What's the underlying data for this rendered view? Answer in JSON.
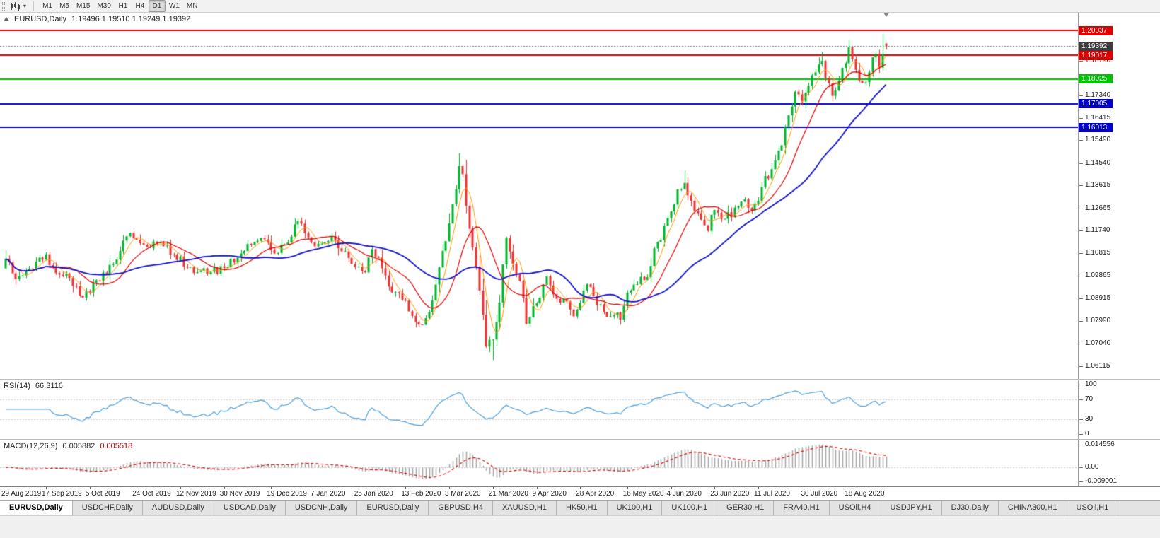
{
  "toolbar": {
    "timeframes": [
      "M1",
      "M5",
      "M15",
      "M30",
      "H1",
      "H4",
      "D1",
      "W1",
      "MN"
    ],
    "active_timeframe": "D1"
  },
  "chart": {
    "window_title": "EURUSD,Daily",
    "ohlc_text": "1.19496 1.19510 1.19249 1.19392"
  },
  "chart_data": {
    "type": "candlestick",
    "symbol": "EURUSD",
    "period": "Daily",
    "open": "1.19496",
    "high": "1.19510",
    "low": "1.19249",
    "close": "1.19392",
    "current_price": "1.19392",
    "price_range": {
      "top": 1.2078,
      "bottom": 1.0558
    },
    "price_ticks": [
      "1.18790",
      "1.17340",
      "1.16415",
      "1.15490",
      "1.14540",
      "1.13615",
      "1.12665",
      "1.11740",
      "1.10815",
      "1.09865",
      "1.08915",
      "1.07990",
      "1.07040",
      "1.06115"
    ],
    "horizontal_lines": [
      {
        "price": 1.20037,
        "label": "1.20037",
        "color": "#e00000"
      },
      {
        "price": 1.19017,
        "label": "1.19017",
        "color": "#e00000"
      },
      {
        "price": 1.18025,
        "label": "1.18025",
        "color": "#00c400"
      },
      {
        "price": 1.17005,
        "label": "1.17005",
        "color": "#0000d0"
      },
      {
        "price": 1.16013,
        "label": "1.16013",
        "color": "#0000d0"
      }
    ],
    "candle_count": 263,
    "close_waypoints": [
      [
        0,
        1.1057
      ],
      [
        3,
        1.0972
      ],
      [
        6,
        1.1
      ],
      [
        10,
        1.1065
      ],
      [
        12,
        1.1072
      ],
      [
        15,
        1.1
      ],
      [
        18,
        1.099
      ],
      [
        21,
        1.0945
      ],
      [
        23,
        1.0895
      ],
      [
        26,
        1.096
      ],
      [
        28,
        1.097
      ],
      [
        32,
        1.1035
      ],
      [
        36,
        1.115
      ],
      [
        38,
        1.114
      ],
      [
        42,
        1.111
      ],
      [
        46,
        1.1127
      ],
      [
        50,
        1.107
      ],
      [
        54,
        1.102
      ],
      [
        58,
        1.101
      ],
      [
        61,
        1.1005
      ],
      [
        65,
        1.1017
      ],
      [
        70,
        1.108
      ],
      [
        74,
        1.113
      ],
      [
        76,
        1.1145
      ],
      [
        80,
        1.1075
      ],
      [
        84,
        1.112
      ],
      [
        87,
        1.1212
      ],
      [
        89,
        1.116
      ],
      [
        92,
        1.1103
      ],
      [
        95,
        1.1125
      ],
      [
        98,
        1.1136
      ],
      [
        101,
        1.109
      ],
      [
        104,
        1.1023
      ],
      [
        107,
        1.1
      ],
      [
        109,
        1.1093
      ],
      [
        111,
        1.106
      ],
      [
        114,
        1.0945
      ],
      [
        117,
        1.0915
      ],
      [
        120,
        1.084
      ],
      [
        123,
        1.0786
      ],
      [
        125,
        1.0805
      ],
      [
        127,
        1.0885
      ],
      [
        129,
        1.1026
      ],
      [
        131,
        1.113
      ],
      [
        133,
        1.128
      ],
      [
        135,
        1.1446
      ],
      [
        136,
        1.141
      ],
      [
        137,
        1.128
      ],
      [
        138,
        1.1184
      ],
      [
        139,
        1.1105
      ],
      [
        141,
        1.092
      ],
      [
        143,
        1.0691
      ],
      [
        145,
        1.0722
      ],
      [
        146,
        1.079
      ],
      [
        147,
        1.088
      ],
      [
        148,
        1.103
      ],
      [
        149,
        1.114
      ],
      [
        151,
        1.1031
      ],
      [
        153,
        1.096
      ],
      [
        155,
        1.0791
      ],
      [
        157,
        1.086
      ],
      [
        159,
        1.09
      ],
      [
        161,
        1.098
      ],
      [
        163,
        1.091
      ],
      [
        165,
        1.087
      ],
      [
        167,
        1.088
      ],
      [
        169,
        1.0823
      ],
      [
        171,
        1.087
      ],
      [
        173,
        1.0955
      ],
      [
        175,
        1.09
      ],
      [
        178,
        1.0834
      ],
      [
        181,
        1.082
      ],
      [
        183,
        1.0805
      ],
      [
        185,
        1.0915
      ],
      [
        188,
        1.095
      ],
      [
        191,
        1.0983
      ],
      [
        193,
        1.11
      ],
      [
        195,
        1.1134
      ],
      [
        198,
        1.125
      ],
      [
        200,
        1.134
      ],
      [
        202,
        1.1375
      ],
      [
        204,
        1.13
      ],
      [
        206,
        1.125
      ],
      [
        209,
        1.1177
      ],
      [
        211,
        1.126
      ],
      [
        214,
        1.1219
      ],
      [
        216,
        1.1234
      ],
      [
        218,
        1.127
      ],
      [
        220,
        1.1308
      ],
      [
        222,
        1.126
      ],
      [
        224,
        1.13
      ],
      [
        226,
        1.1398
      ],
      [
        228,
        1.143
      ],
      [
        231,
        1.1525
      ],
      [
        233,
        1.165
      ],
      [
        235,
        1.1752
      ],
      [
        237,
        1.171
      ],
      [
        239,
        1.1778
      ],
      [
        241,
        1.183
      ],
      [
        243,
        1.1876
      ],
      [
        245,
        1.179
      ],
      [
        246,
        1.173
      ],
      [
        249,
        1.185
      ],
      [
        251,
        1.1933
      ],
      [
        253,
        1.184
      ],
      [
        254,
        1.1797
      ],
      [
        256,
        1.179
      ],
      [
        257,
        1.1831
      ],
      [
        259,
        1.1903
      ],
      [
        260,
        1.185
      ],
      [
        261,
        1.1911
      ],
      [
        262,
        1.19392
      ]
    ],
    "wick_overrides": {
      "135": {
        "high": 1.1495
      },
      "145": {
        "low": 1.0636
      },
      "202": {
        "high": 1.1422
      },
      "243": {
        "high": 1.1916
      },
      "251": {
        "high": 1.1966
      },
      "261": {
        "high": 1.199
      },
      "262": {
        "open": 1.19496,
        "high": 1.1951,
        "low": 1.19249,
        "close": 1.19392
      }
    },
    "moving_averages": [
      {
        "period": 5,
        "color": "#ff9900",
        "width": 1
      },
      {
        "period": 13,
        "color": "#e00000",
        "width": 1.2
      },
      {
        "period": 34,
        "color": "#1111cc",
        "width": 1.8
      }
    ],
    "date_labels": [
      "29 Aug 2019",
      "17 Sep 2019",
      "5 Oct 2019",
      "24 Oct 2019",
      "12 Nov 2019",
      "30 Nov 2019",
      "19 Dec 2019",
      "7 Jan 2020",
      "25 Jan 2020",
      "13 Feb 2020",
      "3 Mar 2020",
      "21 Mar 2020",
      "9 Apr 2020",
      "28 Apr 2020",
      "16 May 2020",
      "4 Jun 2020",
      "23 Jun 2020",
      "11 Jul 2020",
      "30 Jul 2020",
      "18 Aug 2020"
    ],
    "date_label_indices": [
      0,
      12,
      25,
      39,
      52,
      65,
      79,
      92,
      105,
      119,
      132,
      145,
      158,
      171,
      185,
      198,
      211,
      224,
      238,
      251
    ],
    "colors": {
      "background": "#ffffff",
      "bull_candle": "#00b32c",
      "bear_candle": "#ec3232",
      "current_price_badge": "#3c3c3c",
      "current_price_line": "#777777"
    }
  },
  "rsi": {
    "label": "RSI(14)",
    "value": "66.3116",
    "levels": [
      100,
      70,
      30,
      0
    ],
    "level_lines": [
      70,
      30
    ],
    "color": "#4a9ede"
  },
  "macd": {
    "label": "MACD(12,26,9)",
    "value_main": "0.005882",
    "value_signal": "0.005518",
    "axis_labels": [
      "0.014556",
      "0.00",
      "-0.009001"
    ],
    "scale": {
      "max": 0.014556,
      "min": -0.009001
    },
    "histogram_color": "#a0a0a0",
    "signal_color": "#dd0000"
  },
  "tabs": [
    "EURUSD,Daily",
    "USDCHF,Daily",
    "AUDUSD,Daily",
    "USDCAD,Daily",
    "USDCNH,Daily",
    "EURUSD,Daily",
    "GBPUSD,H4",
    "XAUUSD,H1",
    "HK50,H1",
    "UK100,H1",
    "UK100,H1",
    "GER30,H1",
    "FRA40,H1",
    "USOil,H4",
    "USDJPY,H1",
    "DJ30,Daily",
    "CHINA300,H1",
    "USOil,H1"
  ],
  "active_tab_index": 0
}
